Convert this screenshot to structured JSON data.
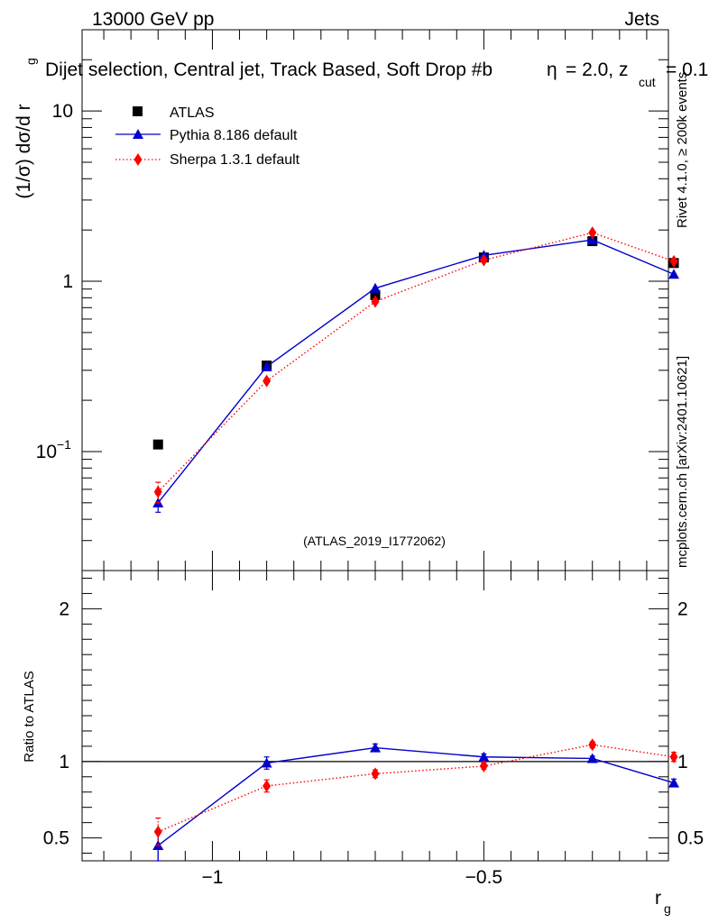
{
  "header": {
    "energy": "13000 GeV pp",
    "process": "Jets",
    "selection": "Dijet selection, Central jet, Track Based, Soft Drop #b",
    "selection_tail": "= 2.0, z",
    "selection_sub": "cut",
    "selection_end": "= 0.1",
    "eta_symbol": "η",
    "analysis_id": "(ATLAS_2019_I1772062)"
  },
  "side": {
    "rivet": "Rivet 4.1.0, ≥ 200k events",
    "mcplots": "mcplots.cern.ch [arXiv:2401.10621]"
  },
  "chart_data": [
    {
      "type": "line",
      "panel": "main",
      "ylabel": "(1/σ) dσ/d r",
      "ylabel_sub": "g",
      "yscale": "log",
      "ylim": [
        0.02,
        30
      ],
      "xlim": [
        -1.24,
        -0.16
      ],
      "yticks": [
        {
          "value": 0.1,
          "label": "10",
          "sup": "−1"
        },
        {
          "value": 1,
          "label": "1",
          "sup": ""
        },
        {
          "value": 10,
          "label": "10",
          "sup": ""
        }
      ],
      "legend": {
        "position": "top-left"
      },
      "series": [
        {
          "name": "ATLAS",
          "marker": "square",
          "color": "#000000",
          "line": "none",
          "x": [
            -1.1,
            -0.9,
            -0.7,
            -0.5,
            -0.3,
            -0.15
          ],
          "y": [
            0.11,
            0.32,
            0.83,
            1.38,
            1.72,
            1.28
          ],
          "err": [
            0,
            0,
            0,
            0,
            0,
            0
          ]
        },
        {
          "name": "Pythia 8.186 default",
          "marker": "triangle",
          "color": "#0000cc",
          "line": "solid",
          "x": [
            -1.1,
            -0.9,
            -0.7,
            -0.5,
            -0.3,
            -0.15
          ],
          "y": [
            0.05,
            0.315,
            0.91,
            1.42,
            1.75,
            1.1
          ],
          "err": [
            0.006,
            0,
            0,
            0,
            0,
            0
          ]
        },
        {
          "name": "Sherpa 1.3.1 default",
          "marker": "diamond",
          "color": "#ff0000",
          "line": "dotted",
          "x": [
            -1.1,
            -0.9,
            -0.7,
            -0.5,
            -0.3,
            -0.15
          ],
          "y": [
            0.058,
            0.26,
            0.76,
            1.33,
            1.93,
            1.31
          ],
          "err": [
            0.008,
            0,
            0,
            0,
            0,
            0
          ]
        }
      ]
    },
    {
      "type": "line",
      "panel": "ratio",
      "ylabel": "Ratio to ATLAS",
      "xlabel": "r",
      "xlabel_sub": "g",
      "ylim": [
        0.35,
        2.25
      ],
      "xlim": [
        -1.24,
        -0.16
      ],
      "yticks": [
        0.5,
        1,
        2
      ],
      "ytick_labels": [
        "0.5",
        "1",
        "2"
      ],
      "xticks": [
        -1,
        -0.5
      ],
      "xtick_labels": [
        "−1",
        "−0.5"
      ],
      "reference_line": 1,
      "series": [
        {
          "name": "Pythia 8.186 default",
          "marker": "triangle",
          "color": "#0000cc",
          "line": "solid",
          "x": [
            -1.1,
            -0.9,
            -0.7,
            -0.5,
            -0.3,
            -0.15
          ],
          "y": [
            0.45,
            0.99,
            1.09,
            1.03,
            1.02,
            0.86
          ],
          "err": [
            0.1,
            0.04,
            0.025,
            0.02,
            0.015,
            0.025
          ]
        },
        {
          "name": "Sherpa 1.3.1 default",
          "marker": "diamond",
          "color": "#ff0000",
          "line": "dotted",
          "x": [
            -1.1,
            -0.9,
            -0.7,
            -0.5,
            -0.3,
            -0.15
          ],
          "y": [
            0.54,
            0.84,
            0.92,
            0.97,
            1.11,
            1.03
          ],
          "err": [
            0.09,
            0.04,
            0.025,
            0.02,
            0.02,
            0.03
          ]
        }
      ]
    }
  ]
}
